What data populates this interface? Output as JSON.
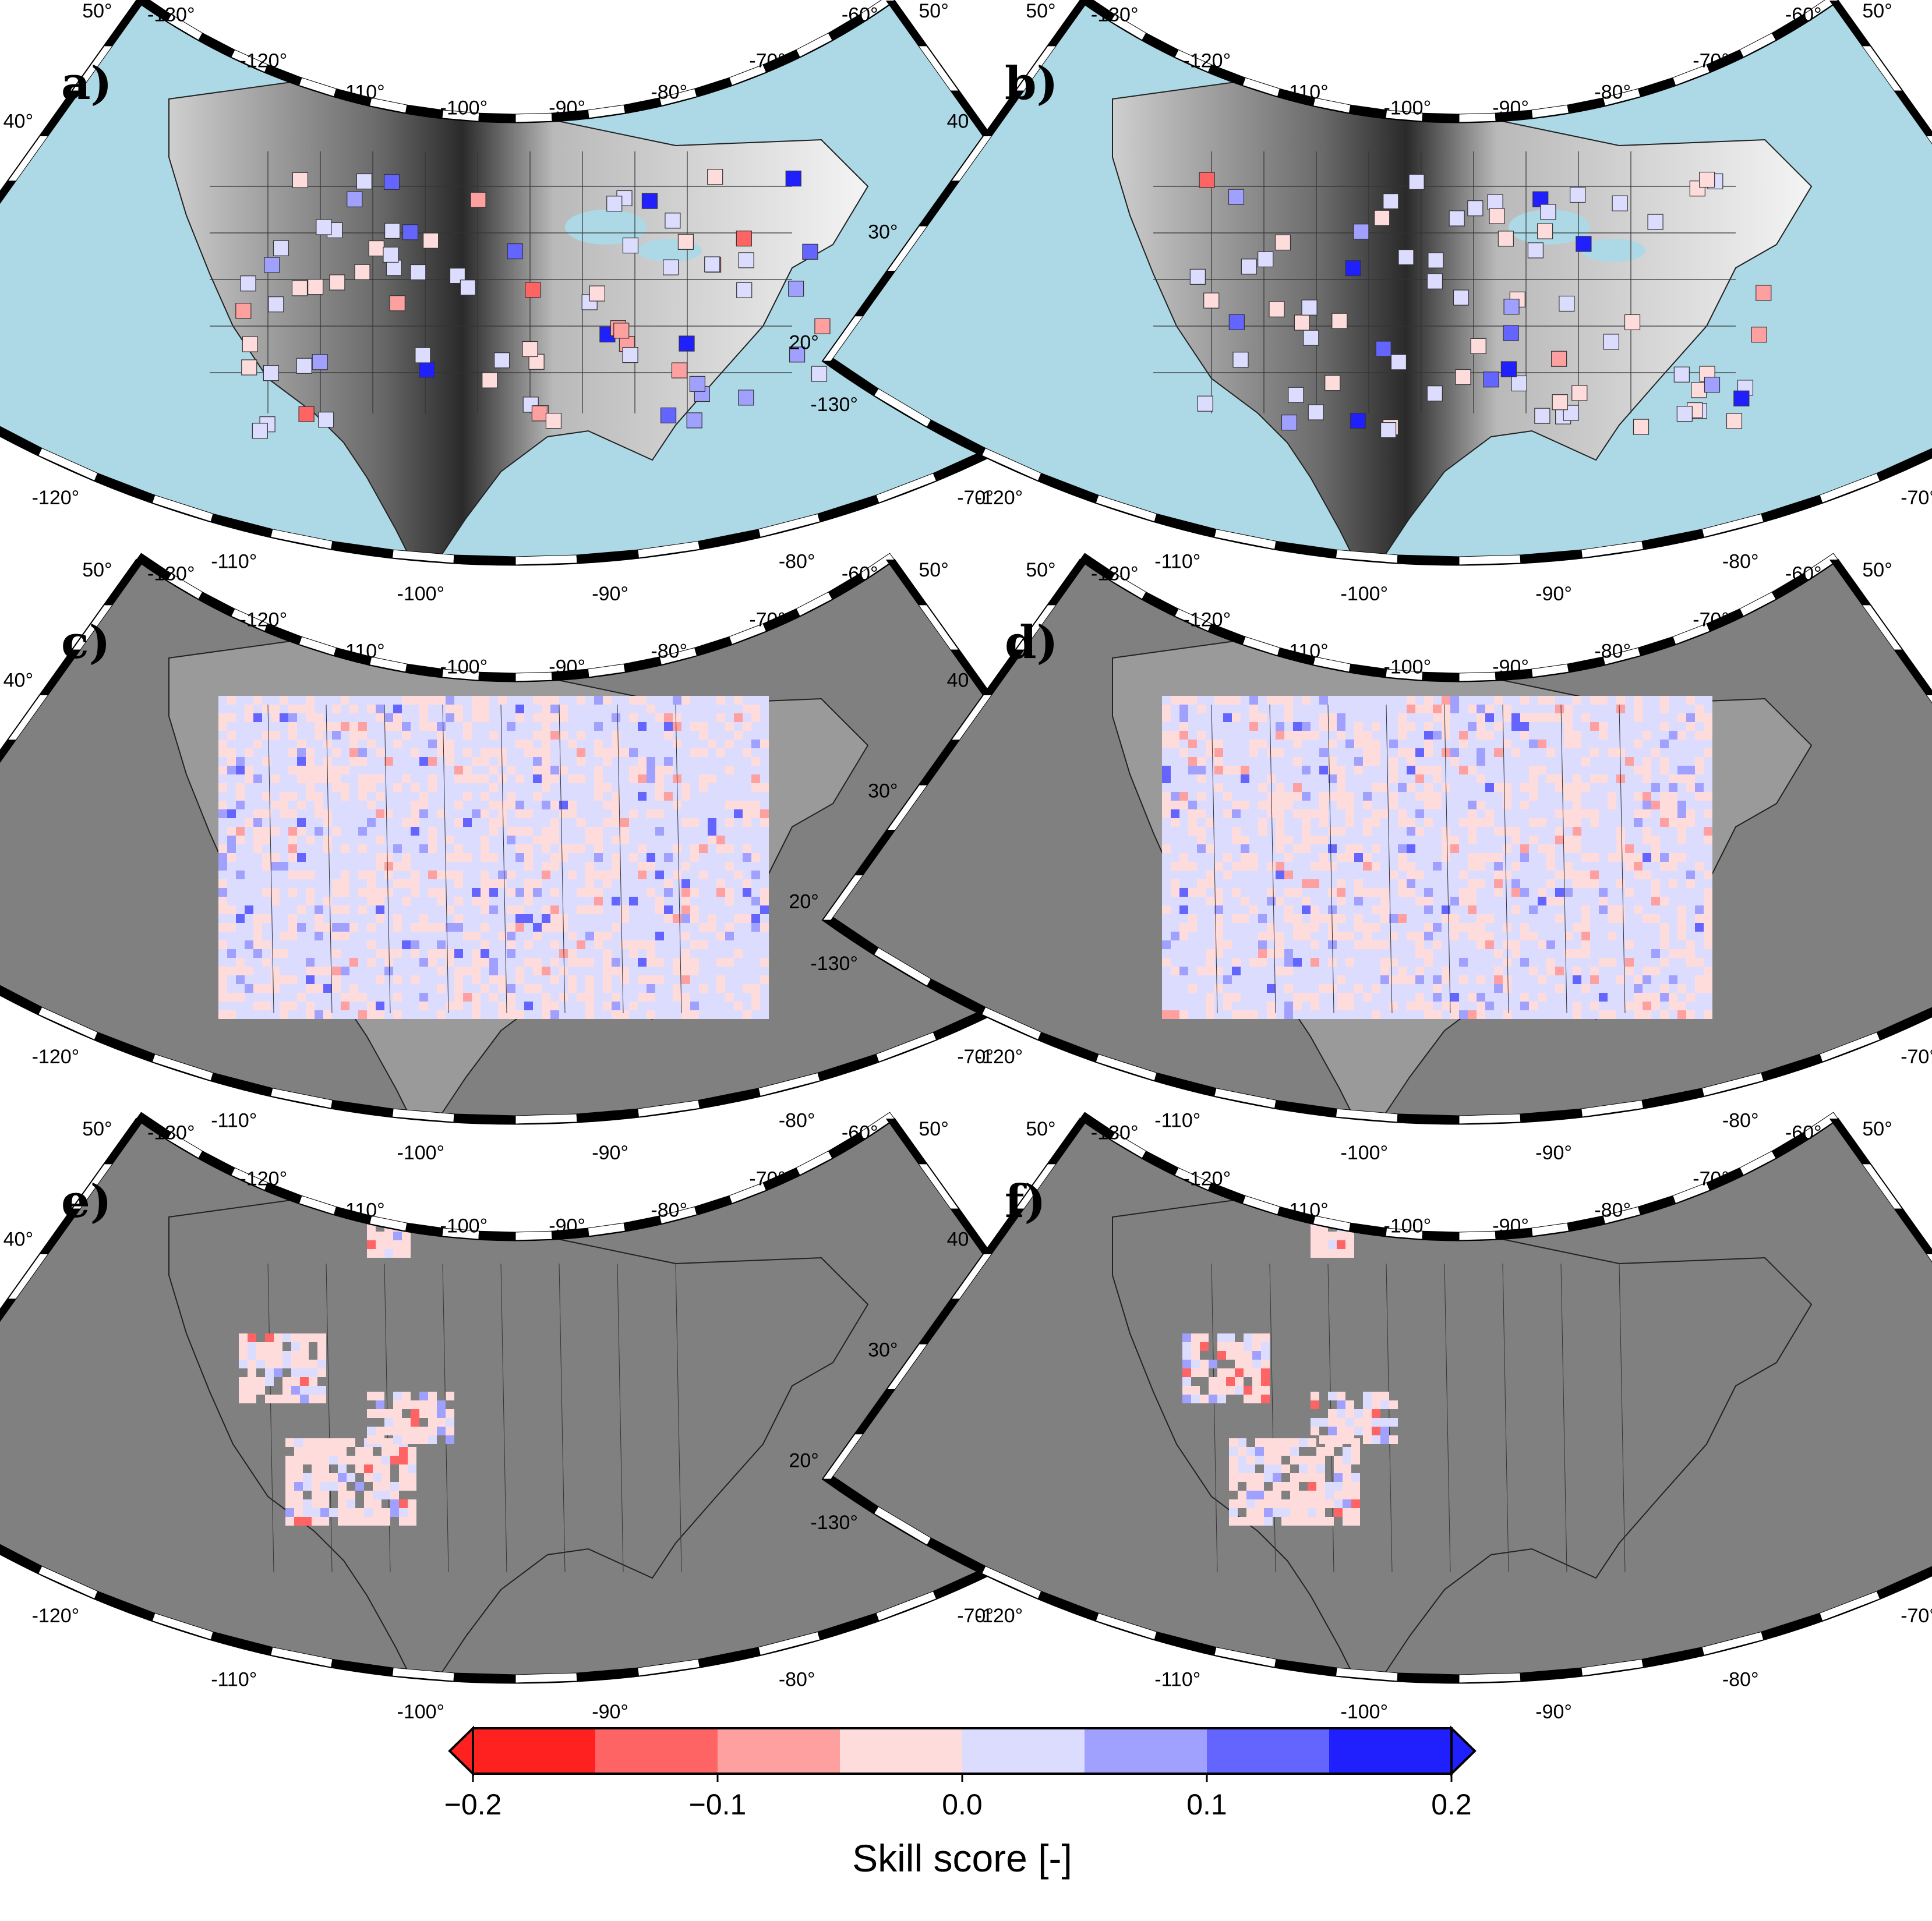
{
  "panels": [
    {
      "id": "a",
      "label": "a)",
      "kind": "stations",
      "ocean": "#add8e6"
    },
    {
      "id": "b",
      "label": "b)",
      "kind": "stations",
      "ocean": "#add8e6"
    },
    {
      "id": "c",
      "label": "c)",
      "kind": "grid-full",
      "ocean": "#808080"
    },
    {
      "id": "d",
      "label": "d)",
      "kind": "grid-full",
      "ocean": "#808080"
    },
    {
      "id": "e",
      "label": "e)",
      "kind": "grid-west",
      "ocean": "#808080"
    },
    {
      "id": "f",
      "label": "f)",
      "kind": "grid-west",
      "ocean": "#808080"
    }
  ],
  "map_frame": {
    "top_lon_labels": [
      "-130°",
      "-120°",
      "-110°",
      "-100°",
      "-90°",
      "-80°",
      "-70°",
      "-60°"
    ],
    "bottom_lon_labels": [
      "-130°",
      "-120°",
      "-110°",
      "-100°",
      "-90°",
      "-80°",
      "-70°",
      "-60°"
    ],
    "left_lat_labels": [
      "20°",
      "30°",
      "40°",
      "50°"
    ],
    "right_lat_labels": [
      "20°",
      "30°",
      "40°",
      "50°"
    ]
  },
  "colorbar": {
    "title": "Skill score [-]",
    "tick_labels": [
      "−0.2",
      "−0.1",
      "0.0",
      "0.1",
      "0.2"
    ],
    "range": [
      -0.2,
      0.2
    ],
    "bins": [
      -0.2,
      -0.15,
      -0.1,
      -0.05,
      0.0,
      0.05,
      0.1,
      0.15,
      0.2
    ],
    "colors": [
      "#ff2020",
      "#ff6464",
      "#ffa0a0",
      "#ffdcdc",
      "#dcdcff",
      "#a0a0ff",
      "#6464ff",
      "#2020ff"
    ],
    "under_color": "#ff2020",
    "over_color": "#2020ff"
  },
  "colors": {
    "land_gray": "#808080",
    "ocean_blue": "#add8e6",
    "grid_background": "#dcdcff"
  }
}
